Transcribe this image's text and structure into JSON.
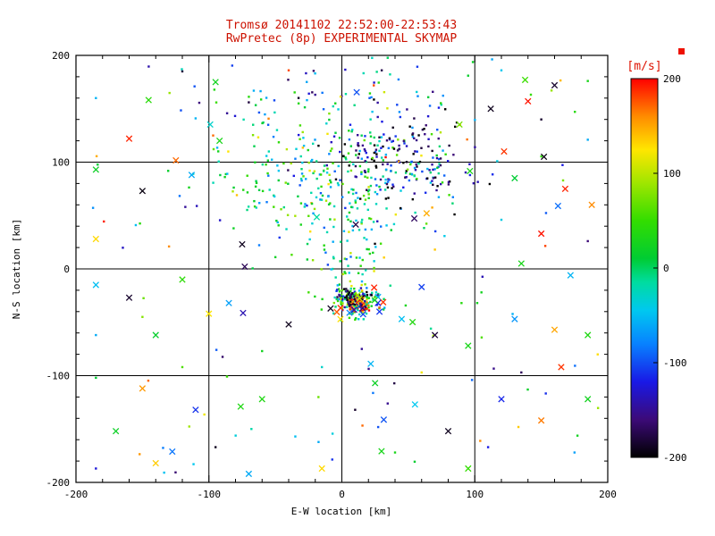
{
  "chart_data": {
    "type": "scatter",
    "title": "Tromsø 20141102 22:52:00-22:53:43",
    "subtitle": "RwPretec (8p) EXPERIMENTAL SKYMAP",
    "xlabel": "E-W location [km]",
    "ylabel": "N-S location [km]",
    "xlim": [
      -200,
      200
    ],
    "ylim": [
      -200,
      200
    ],
    "xticks": [
      -200,
      -100,
      0,
      100,
      200
    ],
    "yticks": [
      -200,
      -100,
      0,
      100,
      200
    ],
    "gridlines": [
      -100,
      0,
      100
    ],
    "minor_tick_step": 20,
    "grid": true,
    "legend_position": "none",
    "colorbar": {
      "label": "[m/s]",
      "min": -200,
      "max": 200,
      "ticks": [
        200,
        100,
        0,
        -100,
        -200
      ]
    },
    "colormap_stops": [
      [
        -200,
        "#000000"
      ],
      [
        -160,
        "#3c0a78"
      ],
      [
        -120,
        "#1919e6"
      ],
      [
        -80,
        "#0882ff"
      ],
      [
        -45,
        "#00c8f0"
      ],
      [
        -15,
        "#00dca0"
      ],
      [
        10,
        "#00cc33"
      ],
      [
        50,
        "#33dd00"
      ],
      [
        90,
        "#a0e600"
      ],
      [
        125,
        "#ffe600"
      ],
      [
        160,
        "#ff8c00"
      ],
      [
        200,
        "#ff0000"
      ]
    ],
    "colors": {
      "title": "#cc1100",
      "colorbar_label": "#dd1100",
      "axis": "#000000",
      "background": "#ffffff"
    },
    "seed": 20141102,
    "points": [
      [
        -160,
        122,
        190,
        "x"
      ],
      [
        -185,
        93,
        20,
        "x"
      ],
      [
        -150,
        73,
        -195,
        "x"
      ],
      [
        -113,
        88,
        -60,
        "x"
      ],
      [
        -185,
        28,
        130,
        "x"
      ],
      [
        -92,
        120,
        30,
        "x"
      ],
      [
        -75,
        23,
        -190,
        "x"
      ],
      [
        -95,
        175,
        25,
        "x"
      ],
      [
        160,
        172,
        -185,
        "x"
      ],
      [
        140,
        157,
        195,
        "x"
      ],
      [
        112,
        150,
        -190,
        "x"
      ],
      [
        122,
        110,
        185,
        "x"
      ],
      [
        152,
        105,
        -195,
        "x"
      ],
      [
        130,
        85,
        10,
        "x"
      ],
      [
        168,
        75,
        190,
        "x"
      ],
      [
        188,
        60,
        160,
        "x"
      ],
      [
        150,
        33,
        195,
        "x"
      ],
      [
        135,
        5,
        30,
        "x"
      ],
      [
        172,
        -6,
        -55,
        "x"
      ],
      [
        -185,
        -15,
        -50,
        "x"
      ],
      [
        -160,
        -27,
        -185,
        "x"
      ],
      [
        -120,
        -10,
        45,
        "x"
      ],
      [
        -100,
        -42,
        125,
        "x"
      ],
      [
        -140,
        -62,
        15,
        "x"
      ],
      [
        -85,
        -32,
        -65,
        "x"
      ],
      [
        -40,
        -52,
        -190,
        "x"
      ],
      [
        -150,
        -112,
        155,
        "x"
      ],
      [
        -110,
        -132,
        -110,
        "x"
      ],
      [
        -170,
        -152,
        20,
        "x"
      ],
      [
        -140,
        -182,
        135,
        "x"
      ],
      [
        -70,
        -192,
        -60,
        "x"
      ],
      [
        -60,
        -122,
        35,
        "x"
      ],
      [
        -15,
        -187,
        130,
        "x"
      ],
      [
        25,
        -107,
        20,
        "x"
      ],
      [
        55,
        -127,
        -45,
        "x"
      ],
      [
        80,
        -152,
        -190,
        "x"
      ],
      [
        95,
        -187,
        50,
        "x"
      ],
      [
        120,
        -122,
        -115,
        "x"
      ],
      [
        150,
        -142,
        165,
        "x"
      ],
      [
        185,
        -122,
        25,
        "x"
      ],
      [
        165,
        -92,
        185,
        "x"
      ],
      [
        45,
        -47,
        -50,
        "x"
      ],
      [
        70,
        -62,
        -180,
        "x"
      ],
      [
        60,
        -17,
        -105,
        "x"
      ],
      [
        95,
        -72,
        30,
        "x"
      ],
      [
        130,
        -47,
        -70,
        "x"
      ],
      [
        160,
        -57,
        150,
        "x"
      ],
      [
        185,
        -62,
        35,
        "x"
      ],
      [
        -185,
        160,
        -55,
        "d"
      ],
      [
        -120,
        185,
        -180,
        "d"
      ],
      [
        -40,
        186,
        180,
        "d"
      ],
      [
        30,
        186,
        -175,
        "d"
      ],
      [
        95,
        181,
        15,
        "d"
      ],
      [
        120,
        186,
        -45,
        "d"
      ],
      [
        185,
        176,
        30,
        "d"
      ],
      [
        150,
        140,
        -185,
        "d"
      ],
      [
        185,
        121,
        -60,
        "d"
      ],
      [
        -155,
        41,
        -50,
        "d"
      ],
      [
        -130,
        21,
        160,
        "d"
      ],
      [
        -50,
        11,
        20,
        "d"
      ],
      [
        -60,
        -77,
        25,
        "d"
      ],
      [
        -25,
        -22,
        55,
        "d"
      ],
      [
        -185,
        -62,
        -60,
        "d"
      ],
      [
        -185,
        -102,
        10,
        "d"
      ],
      [
        -95,
        -167,
        -190,
        "d"
      ],
      [
        -35,
        -157,
        -50,
        "d"
      ],
      [
        10,
        -132,
        -185,
        "d"
      ],
      [
        40,
        -172,
        30,
        "d"
      ],
      [
        175,
        -172,
        -65,
        "d"
      ],
      [
        110,
        -167,
        -120,
        "d"
      ],
      [
        60,
        -97,
        120,
        "d"
      ],
      [
        90,
        -32,
        40,
        "d"
      ],
      [
        105,
        -22,
        25,
        "d"
      ],
      [
        185,
        26,
        -160,
        "d"
      ],
      [
        120,
        46,
        -40,
        "d"
      ],
      [
        -110,
        141,
        -55,
        "d"
      ],
      [
        -70,
        156,
        -180,
        "d"
      ],
      [
        -185,
        -187,
        -125,
        "d"
      ],
      [
        135,
        -97,
        -170,
        "d"
      ],
      [
        -120,
        -92,
        60,
        "d"
      ],
      [
        -15,
        -92,
        -30,
        "d"
      ],
      [
        -150,
        -45,
        80,
        "d"
      ],
      [
        15,
        -75,
        -150,
        "d"
      ]
    ],
    "clusters": [
      {
        "name": "upper-cloud-green",
        "dist": "gauss",
        "cx": -5,
        "cy": 88,
        "sx": 45,
        "sy": 34,
        "n": 260,
        "marker": "d",
        "v_mean": 0,
        "v_std": 55
      },
      {
        "name": "upper-cloud-dark",
        "dist": "gauss",
        "cx": 42,
        "cy": 103,
        "sx": 30,
        "sy": 24,
        "n": 170,
        "marker": "d",
        "v_mean": -150,
        "v_std": 45
      },
      {
        "name": "upper-cloud-sprinkle",
        "dist": "gauss",
        "cx": 10,
        "cy": 100,
        "sx": 60,
        "sy": 45,
        "n": 45,
        "marker": "d",
        "v_uniform": true
      },
      {
        "name": "top-band",
        "dist": "gauss",
        "cx": 0,
        "cy": 160,
        "sx": 48,
        "sy": 22,
        "n": 55,
        "marker": "d",
        "v_mean": -20,
        "v_std": 80
      },
      {
        "name": "central-column",
        "dist": "gauss",
        "cx": 5,
        "cy": 25,
        "sx": 14,
        "sy": 32,
        "n": 70,
        "marker": "d",
        "v_mean": 5,
        "v_std": 45
      },
      {
        "name": "core-green",
        "dist": "gauss",
        "cx": 11,
        "cy": -30,
        "sx": 9,
        "sy": 7,
        "n": 150,
        "marker": "d",
        "v_mean": 10,
        "v_std": 60
      },
      {
        "name": "core-hot",
        "dist": "gauss",
        "cx": 12,
        "cy": -32,
        "sx": 5,
        "sy": 4,
        "n": 60,
        "marker": "d",
        "v_mean": 170,
        "v_std": 40
      },
      {
        "name": "core-dark",
        "dist": "gauss",
        "cx": 8,
        "cy": -28,
        "sx": 7,
        "sy": 5,
        "n": 55,
        "marker": "d",
        "v_mean": -170,
        "v_std": 40
      },
      {
        "name": "core-ring-x",
        "dist": "gauss",
        "cx": 12,
        "cy": -32,
        "sx": 16,
        "sy": 12,
        "n": 18,
        "marker": "x",
        "v_uniform": true
      },
      {
        "name": "field-dots",
        "dist": "uniform",
        "xmin": -195,
        "xmax": 195,
        "ymin": -195,
        "ymax": 195,
        "n": 80,
        "marker": "d",
        "v_uniform": true
      },
      {
        "name": "field-x",
        "dist": "uniform",
        "xmin": -195,
        "xmax": 195,
        "ymin": -195,
        "ymax": 195,
        "n": 20,
        "marker": "x",
        "v_uniform": true
      }
    ]
  }
}
